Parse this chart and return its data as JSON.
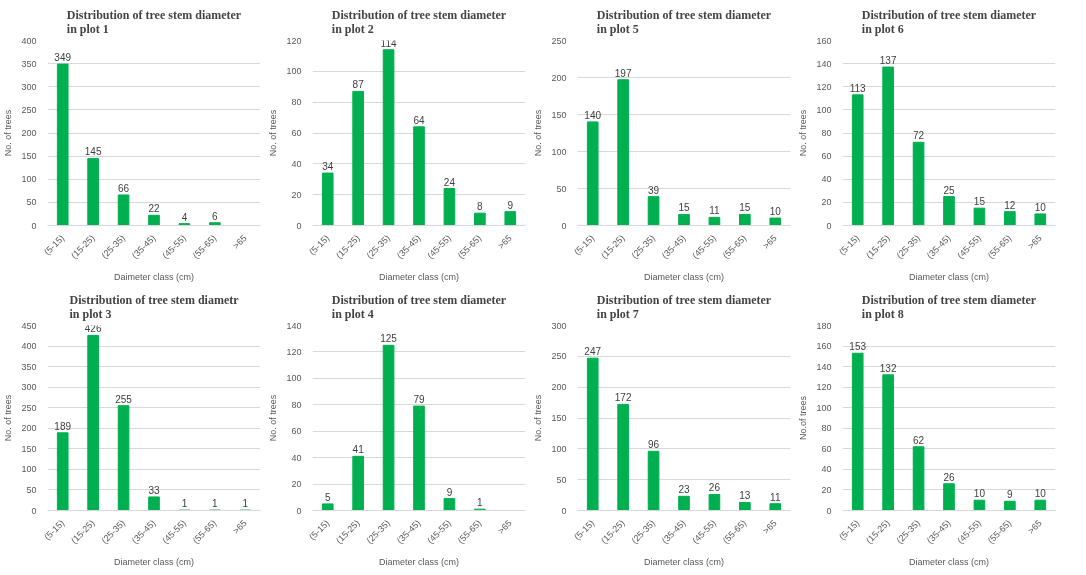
{
  "chart_data": [
    {
      "type": "bar",
      "title": "Distribution of tree stem diameter in plot 1",
      "xlabel": "Daimeter class (cm)",
      "ylabel": "No. of trees",
      "categories": [
        "(5-15)",
        "(15-25)",
        "(25-35)",
        "(35-45)",
        "(45-55)",
        "(55-65)",
        ">65"
      ],
      "series": [
        {
          "color": "#00b050",
          "values": [
            349,
            145,
            66,
            22,
            4,
            6,
            null
          ]
        }
      ],
      "ylim": [
        0,
        400
      ],
      "yticks": [
        0,
        50,
        100,
        150,
        200,
        250,
        300,
        350,
        400
      ],
      "grid": "y",
      "data_labels": true
    },
    {
      "type": "bar",
      "title": "Distribution of tree stem diameter in plot 2",
      "xlabel": "Diameter class (cm)",
      "ylabel": "No. of trees",
      "categories": [
        "(5-15)",
        "(15-25)",
        "(25-35)",
        "(35-45)",
        "(45-55)",
        "(55-65)",
        ">65"
      ],
      "series": [
        {
          "color": "#00b050",
          "values": [
            34,
            87,
            114,
            64,
            24,
            8,
            9
          ]
        }
      ],
      "ylim": [
        0,
        120
      ],
      "yticks": [
        0,
        20,
        40,
        60,
        80,
        100,
        120
      ],
      "grid": "y",
      "data_labels": true
    },
    {
      "type": "bar",
      "title": "Distribution of tree stem diameter in plot 5",
      "xlabel": "Diameter class (cm)",
      "ylabel": "No. of trees",
      "categories": [
        "(5-15)",
        "(15-25)",
        "(25-35)",
        "(35-45)",
        "(45-55)",
        "(55-65)",
        ">65"
      ],
      "series": [
        {
          "color": "#00b050",
          "values": [
            140,
            197,
            39,
            15,
            11,
            15,
            10
          ]
        }
      ],
      "ylim": [
        0,
        250
      ],
      "yticks": [
        0,
        50,
        100,
        150,
        200,
        250
      ],
      "grid": "y",
      "data_labels": true
    },
    {
      "type": "bar",
      "title": "Distribution of tree stem diameter in plot 6",
      "xlabel": "Diameter class (cm)",
      "ylabel": "No. of trees",
      "categories": [
        "(5-15)",
        "(15-25)",
        "(25-35)",
        "(35-45)",
        "(45-55)",
        "(55-65)",
        ">65"
      ],
      "series": [
        {
          "color": "#00b050",
          "values": [
            113,
            137,
            72,
            25,
            15,
            12,
            10
          ]
        }
      ],
      "ylim": [
        0,
        160
      ],
      "yticks": [
        0,
        20,
        40,
        60,
        80,
        100,
        120,
        140,
        160
      ],
      "grid": "y",
      "data_labels": true
    },
    {
      "type": "bar",
      "title": "Distribution of tree stem diametr in plot 3",
      "xlabel": "Diameter class (cm)",
      "ylabel": "No. of trees",
      "categories": [
        "(5-15)",
        "(15-25)",
        "(25-35)",
        "(35-45)",
        "(45-55)",
        "(55-65)",
        ">65"
      ],
      "series": [
        {
          "color": "#00b050",
          "values": [
            189,
            426,
            255,
            33,
            1,
            1,
            1
          ]
        }
      ],
      "ylim": [
        0,
        450
      ],
      "yticks": [
        0,
        50,
        100,
        150,
        200,
        250,
        300,
        350,
        400,
        450
      ],
      "grid": "y",
      "data_labels": true
    },
    {
      "type": "bar",
      "title": "Distribution of tree stem diameter in plot 4",
      "xlabel": "Diameter class (cm)",
      "ylabel": "No. of trees",
      "categories": [
        "(5-15)",
        "(15-25)",
        "(25-35)",
        "(35-45)",
        "(45-55)",
        "(55-65)",
        ">65"
      ],
      "series": [
        {
          "color": "#00b050",
          "values": [
            5,
            41,
            125,
            79,
            9,
            1,
            null
          ]
        }
      ],
      "ylim": [
        0,
        140
      ],
      "yticks": [
        0,
        20,
        40,
        60,
        80,
        100,
        120,
        140
      ],
      "grid": "y",
      "data_labels": true
    },
    {
      "type": "bar",
      "title": "Distribution of tree stem diameter in plot 7",
      "xlabel": "Diameter class (cm)",
      "ylabel": "No. of trees",
      "categories": [
        "(5-15)",
        "(15-25)",
        "(25-35)",
        "(35-45)",
        "(45-55)",
        "(55-65)",
        ">65"
      ],
      "series": [
        {
          "color": "#00b050",
          "values": [
            247,
            172,
            96,
            23,
            26,
            13,
            11
          ]
        }
      ],
      "ylim": [
        0,
        300
      ],
      "yticks": [
        0,
        50,
        100,
        150,
        200,
        250,
        300
      ],
      "grid": "y",
      "data_labels": true
    },
    {
      "type": "bar",
      "title": "Distribution of tree stem diameter in plot 8",
      "xlabel": "Diameter class (cm)",
      "ylabel": "No.of trees",
      "categories": [
        "(5-15)",
        "(15-25)",
        "(25-35)",
        "(35-45)",
        "(45-55)",
        "(55-65)",
        ">65"
      ],
      "series": [
        {
          "color": "#00b050",
          "values": [
            153,
            132,
            62,
            26,
            10,
            9,
            10
          ]
        }
      ],
      "ylim": [
        0,
        180
      ],
      "yticks": [
        0,
        20,
        40,
        60,
        80,
        100,
        120,
        140,
        160,
        180
      ],
      "grid": "y",
      "data_labels": true
    }
  ]
}
